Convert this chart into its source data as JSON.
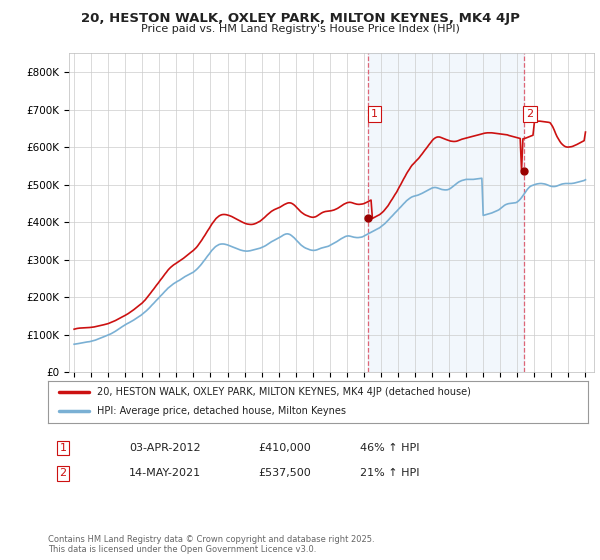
{
  "title": "20, HESTON WALK, OXLEY PARK, MILTON KEYNES, MK4 4JP",
  "subtitle": "Price paid vs. HM Land Registry's House Price Index (HPI)",
  "bg_color": "#ffffff",
  "plot_bg": "#ffffff",
  "line_color_hpi": "#7ab0d4",
  "line_color_price": "#cc1111",
  "vline_color": "#dd6677",
  "shade_color": "#ddeeff",
  "legend_label_price": "20, HESTON WALK, OXLEY PARK, MILTON KEYNES, MK4 4JP (detached house)",
  "legend_label_hpi": "HPI: Average price, detached house, Milton Keynes",
  "annotation1_label": "1",
  "annotation1_date": "03-APR-2012",
  "annotation1_price": "£410,000",
  "annotation1_hpi": "46% ↑ HPI",
  "annotation2_label": "2",
  "annotation2_date": "14-MAY-2021",
  "annotation2_price": "£537,500",
  "annotation2_hpi": "21% ↑ HPI",
  "footer": "Contains HM Land Registry data © Crown copyright and database right 2025.\nThis data is licensed under the Open Government Licence v3.0.",
  "sale1_x": 2012.27,
  "sale1_y": 410000,
  "sale2_x": 2021.37,
  "sale2_y": 537500,
  "ylim": [
    0,
    850000
  ],
  "xlim_left": 1994.7,
  "xlim_right": 2025.5,
  "yticks": [
    0,
    100000,
    200000,
    300000,
    400000,
    500000,
    600000,
    700000,
    800000
  ],
  "ytick_labels": [
    "£0",
    "£100K",
    "£200K",
    "£300K",
    "£400K",
    "£500K",
    "£600K",
    "£700K",
    "£800K"
  ],
  "hpi_x": [
    1995.0,
    1995.08,
    1995.17,
    1995.25,
    1995.33,
    1995.42,
    1995.5,
    1995.58,
    1995.67,
    1995.75,
    1995.83,
    1995.92,
    1996.0,
    1996.08,
    1996.17,
    1996.25,
    1996.33,
    1996.42,
    1996.5,
    1996.58,
    1996.67,
    1996.75,
    1996.83,
    1996.92,
    1997.0,
    1997.08,
    1997.17,
    1997.25,
    1997.33,
    1997.42,
    1997.5,
    1997.58,
    1997.67,
    1997.75,
    1997.83,
    1997.92,
    1998.0,
    1998.08,
    1998.17,
    1998.25,
    1998.33,
    1998.42,
    1998.5,
    1998.58,
    1998.67,
    1998.75,
    1998.83,
    1998.92,
    1999.0,
    1999.08,
    1999.17,
    1999.25,
    1999.33,
    1999.42,
    1999.5,
    1999.58,
    1999.67,
    1999.75,
    1999.83,
    1999.92,
    2000.0,
    2000.08,
    2000.17,
    2000.25,
    2000.33,
    2000.42,
    2000.5,
    2000.58,
    2000.67,
    2000.75,
    2000.83,
    2000.92,
    2001.0,
    2001.08,
    2001.17,
    2001.25,
    2001.33,
    2001.42,
    2001.5,
    2001.58,
    2001.67,
    2001.75,
    2001.83,
    2001.92,
    2002.0,
    2002.08,
    2002.17,
    2002.25,
    2002.33,
    2002.42,
    2002.5,
    2002.58,
    2002.67,
    2002.75,
    2002.83,
    2002.92,
    2003.0,
    2003.08,
    2003.17,
    2003.25,
    2003.33,
    2003.42,
    2003.5,
    2003.58,
    2003.67,
    2003.75,
    2003.83,
    2003.92,
    2004.0,
    2004.08,
    2004.17,
    2004.25,
    2004.33,
    2004.42,
    2004.5,
    2004.58,
    2004.67,
    2004.75,
    2004.83,
    2004.92,
    2005.0,
    2005.08,
    2005.17,
    2005.25,
    2005.33,
    2005.42,
    2005.5,
    2005.58,
    2005.67,
    2005.75,
    2005.83,
    2005.92,
    2006.0,
    2006.08,
    2006.17,
    2006.25,
    2006.33,
    2006.42,
    2006.5,
    2006.58,
    2006.67,
    2006.75,
    2006.83,
    2006.92,
    2007.0,
    2007.08,
    2007.17,
    2007.25,
    2007.33,
    2007.42,
    2007.5,
    2007.58,
    2007.67,
    2007.75,
    2007.83,
    2007.92,
    2008.0,
    2008.08,
    2008.17,
    2008.25,
    2008.33,
    2008.42,
    2008.5,
    2008.58,
    2008.67,
    2008.75,
    2008.83,
    2008.92,
    2009.0,
    2009.08,
    2009.17,
    2009.25,
    2009.33,
    2009.42,
    2009.5,
    2009.58,
    2009.67,
    2009.75,
    2009.83,
    2009.92,
    2010.0,
    2010.08,
    2010.17,
    2010.25,
    2010.33,
    2010.42,
    2010.5,
    2010.58,
    2010.67,
    2010.75,
    2010.83,
    2010.92,
    2011.0,
    2011.08,
    2011.17,
    2011.25,
    2011.33,
    2011.42,
    2011.5,
    2011.58,
    2011.67,
    2011.75,
    2011.83,
    2011.92,
    2012.0,
    2012.08,
    2012.17,
    2012.25,
    2012.33,
    2012.42,
    2012.5,
    2012.58,
    2012.67,
    2012.75,
    2012.83,
    2012.92,
    2013.0,
    2013.08,
    2013.17,
    2013.25,
    2013.33,
    2013.42,
    2013.5,
    2013.58,
    2013.67,
    2013.75,
    2013.83,
    2013.92,
    2014.0,
    2014.08,
    2014.17,
    2014.25,
    2014.33,
    2014.42,
    2014.5,
    2014.58,
    2014.67,
    2014.75,
    2014.83,
    2014.92,
    2015.0,
    2015.08,
    2015.17,
    2015.25,
    2015.33,
    2015.42,
    2015.5,
    2015.58,
    2015.67,
    2015.75,
    2015.83,
    2015.92,
    2016.0,
    2016.08,
    2016.17,
    2016.25,
    2016.33,
    2016.42,
    2016.5,
    2016.58,
    2016.67,
    2016.75,
    2016.83,
    2016.92,
    2017.0,
    2017.08,
    2017.17,
    2017.25,
    2017.33,
    2017.42,
    2017.5,
    2017.58,
    2017.67,
    2017.75,
    2017.83,
    2017.92,
    2018.0,
    2018.08,
    2018.17,
    2018.25,
    2018.33,
    2018.42,
    2018.5,
    2018.58,
    2018.67,
    2018.75,
    2018.83,
    2018.92,
    2019.0,
    2019.08,
    2019.17,
    2019.25,
    2019.33,
    2019.42,
    2019.5,
    2019.58,
    2019.67,
    2019.75,
    2019.83,
    2019.92,
    2020.0,
    2020.08,
    2020.17,
    2020.25,
    2020.33,
    2020.42,
    2020.5,
    2020.58,
    2020.67,
    2020.75,
    2020.83,
    2020.92,
    2021.0,
    2021.08,
    2021.17,
    2021.25,
    2021.33,
    2021.42,
    2021.5,
    2021.58,
    2021.67,
    2021.75,
    2021.83,
    2021.92,
    2022.0,
    2022.08,
    2022.17,
    2022.25,
    2022.33,
    2022.42,
    2022.5,
    2022.58,
    2022.67,
    2022.75,
    2022.83,
    2022.92,
    2023.0,
    2023.08,
    2023.17,
    2023.25,
    2023.33,
    2023.42,
    2023.5,
    2023.58,
    2023.67,
    2023.75,
    2023.83,
    2023.92,
    2024.0,
    2024.08,
    2024.17,
    2024.25,
    2024.33,
    2024.42,
    2024.5,
    2024.58,
    2024.67,
    2024.75,
    2024.83,
    2024.92,
    2025.0
  ],
  "hpi_y": [
    75000,
    75500,
    76000,
    76800,
    77500,
    78200,
    79000,
    79800,
    80500,
    81000,
    81500,
    82000,
    83000,
    84000,
    85000,
    86000,
    87500,
    89000,
    90500,
    92000,
    93500,
    95000,
    96500,
    98000,
    99500,
    101000,
    103000,
    105000,
    107000,
    109500,
    112000,
    114500,
    117000,
    119500,
    122000,
    124500,
    127000,
    129000,
    131000,
    133000,
    135000,
    137000,
    139500,
    142000,
    144500,
    147000,
    149500,
    152000,
    155000,
    158000,
    161000,
    164500,
    168000,
    172000,
    176000,
    180000,
    184000,
    188000,
    192000,
    196000,
    200000,
    204000,
    208000,
    212000,
    216000,
    220000,
    224000,
    227000,
    230000,
    233000,
    236000,
    238500,
    241000,
    243000,
    245000,
    247500,
    250000,
    252500,
    255000,
    257000,
    259000,
    261000,
    263000,
    265000,
    267000,
    270000,
    273500,
    277000,
    281000,
    285500,
    290000,
    295000,
    300000,
    305000,
    310000,
    315000,
    320000,
    325000,
    329000,
    333000,
    336000,
    338500,
    340500,
    341500,
    342000,
    342000,
    341500,
    340500,
    339500,
    338000,
    336500,
    335000,
    333500,
    332000,
    330500,
    329000,
    327500,
    326000,
    325000,
    324000,
    323500,
    323000,
    323000,
    323500,
    324000,
    325000,
    326000,
    327000,
    328000,
    329000,
    330000,
    331000,
    332500,
    334000,
    336000,
    338000,
    340500,
    343000,
    345500,
    348000,
    350000,
    352000,
    354000,
    356000,
    358000,
    360000,
    362500,
    365000,
    367000,
    368500,
    369000,
    368500,
    367000,
    364500,
    361500,
    358000,
    354000,
    350000,
    346000,
    342000,
    338500,
    335500,
    333000,
    331000,
    329500,
    328000,
    326500,
    325500,
    325000,
    325000,
    325500,
    326500,
    328000,
    329500,
    331000,
    332000,
    333000,
    334000,
    335000,
    336000,
    338000,
    340000,
    342000,
    344000,
    346000,
    348500,
    351000,
    353500,
    356000,
    358000,
    360000,
    362000,
    363000,
    363500,
    363000,
    362000,
    361000,
    360000,
    359500,
    359000,
    359000,
    359500,
    360000,
    361000,
    363000,
    365000,
    367000,
    369000,
    371000,
    373000,
    375000,
    377000,
    379000,
    381000,
    383000,
    385000,
    388000,
    391000,
    394000,
    397000,
    401000,
    405000,
    409000,
    413000,
    417000,
    421000,
    425000,
    429000,
    433000,
    437000,
    441000,
    445000,
    449000,
    453000,
    457000,
    460000,
    463000,
    465500,
    467500,
    469000,
    470000,
    471000,
    472000,
    473500,
    475000,
    477000,
    479000,
    481000,
    483000,
    485000,
    487000,
    489000,
    491000,
    492000,
    492500,
    492000,
    491000,
    489500,
    488000,
    487000,
    486500,
    486000,
    486000,
    486500,
    488000,
    490000,
    493000,
    496000,
    499000,
    502000,
    505000,
    507500,
    509500,
    511000,
    512000,
    513000,
    514000,
    514000,
    514000,
    514000,
    514000,
    514000,
    514500,
    515000,
    515500,
    516000,
    516500,
    517000,
    418000,
    419000,
    420000,
    421000,
    422000,
    423000,
    424500,
    426000,
    427500,
    429000,
    431000,
    433000,
    436000,
    439000,
    442000,
    445000,
    447000,
    448500,
    449500,
    450000,
    450500,
    451000,
    451500,
    452000,
    454000,
    457000,
    461000,
    465500,
    470500,
    476000,
    481500,
    487000,
    491500,
    495000,
    497000,
    498500,
    500000,
    501000,
    502000,
    502500,
    503000,
    503000,
    502500,
    502000,
    501000,
    499500,
    498000,
    496500,
    495500,
    495000,
    495000,
    495500,
    496500,
    498000,
    499500,
    501000,
    502000,
    502500,
    503000,
    503000,
    503000,
    503000,
    503000,
    503500,
    504000,
    505000,
    506000,
    507000,
    508000,
    509000,
    510000,
    511000,
    513000
  ],
  "price_x": [
    1995.0,
    1995.08,
    1995.17,
    1995.25,
    1995.33,
    1995.42,
    1995.5,
    1995.58,
    1995.67,
    1995.75,
    1995.83,
    1995.92,
    1996.0,
    1996.08,
    1996.17,
    1996.25,
    1996.33,
    1996.42,
    1996.5,
    1996.58,
    1996.67,
    1996.75,
    1996.83,
    1996.92,
    1997.0,
    1997.08,
    1997.17,
    1997.25,
    1997.33,
    1997.42,
    1997.5,
    1997.58,
    1997.67,
    1997.75,
    1997.83,
    1997.92,
    1998.0,
    1998.08,
    1998.17,
    1998.25,
    1998.33,
    1998.42,
    1998.5,
    1998.58,
    1998.67,
    1998.75,
    1998.83,
    1998.92,
    1999.0,
    1999.08,
    1999.17,
    1999.25,
    1999.33,
    1999.42,
    1999.5,
    1999.58,
    1999.67,
    1999.75,
    1999.83,
    1999.92,
    2000.0,
    2000.08,
    2000.17,
    2000.25,
    2000.33,
    2000.42,
    2000.5,
    2000.58,
    2000.67,
    2000.75,
    2000.83,
    2000.92,
    2001.0,
    2001.08,
    2001.17,
    2001.25,
    2001.33,
    2001.42,
    2001.5,
    2001.58,
    2001.67,
    2001.75,
    2001.83,
    2001.92,
    2002.0,
    2002.08,
    2002.17,
    2002.25,
    2002.33,
    2002.42,
    2002.5,
    2002.58,
    2002.67,
    2002.75,
    2002.83,
    2002.92,
    2003.0,
    2003.08,
    2003.17,
    2003.25,
    2003.33,
    2003.42,
    2003.5,
    2003.58,
    2003.67,
    2003.75,
    2003.83,
    2003.92,
    2004.0,
    2004.08,
    2004.17,
    2004.25,
    2004.33,
    2004.42,
    2004.5,
    2004.58,
    2004.67,
    2004.75,
    2004.83,
    2004.92,
    2005.0,
    2005.08,
    2005.17,
    2005.25,
    2005.33,
    2005.42,
    2005.5,
    2005.58,
    2005.67,
    2005.75,
    2005.83,
    2005.92,
    2006.0,
    2006.08,
    2006.17,
    2006.25,
    2006.33,
    2006.42,
    2006.5,
    2006.58,
    2006.67,
    2006.75,
    2006.83,
    2006.92,
    2007.0,
    2007.08,
    2007.17,
    2007.25,
    2007.33,
    2007.42,
    2007.5,
    2007.58,
    2007.67,
    2007.75,
    2007.83,
    2007.92,
    2008.0,
    2008.08,
    2008.17,
    2008.25,
    2008.33,
    2008.42,
    2008.5,
    2008.58,
    2008.67,
    2008.75,
    2008.83,
    2008.92,
    2009.0,
    2009.08,
    2009.17,
    2009.25,
    2009.33,
    2009.42,
    2009.5,
    2009.58,
    2009.67,
    2009.75,
    2009.83,
    2009.92,
    2010.0,
    2010.08,
    2010.17,
    2010.25,
    2010.33,
    2010.42,
    2010.5,
    2010.58,
    2010.67,
    2010.75,
    2010.83,
    2010.92,
    2011.0,
    2011.08,
    2011.17,
    2011.25,
    2011.33,
    2011.42,
    2011.5,
    2011.58,
    2011.67,
    2011.75,
    2011.83,
    2011.92,
    2012.0,
    2012.08,
    2012.17,
    2012.25,
    2012.33,
    2012.42,
    2012.5,
    2012.58,
    2012.67,
    2012.75,
    2012.83,
    2012.92,
    2013.0,
    2013.08,
    2013.17,
    2013.25,
    2013.33,
    2013.42,
    2013.5,
    2013.58,
    2013.67,
    2013.75,
    2013.83,
    2013.92,
    2014.0,
    2014.08,
    2014.17,
    2014.25,
    2014.33,
    2014.42,
    2014.5,
    2014.58,
    2014.67,
    2014.75,
    2014.83,
    2014.92,
    2015.0,
    2015.08,
    2015.17,
    2015.25,
    2015.33,
    2015.42,
    2015.5,
    2015.58,
    2015.67,
    2015.75,
    2015.83,
    2015.92,
    2016.0,
    2016.08,
    2016.17,
    2016.25,
    2016.33,
    2016.42,
    2016.5,
    2016.58,
    2016.67,
    2016.75,
    2016.83,
    2016.92,
    2017.0,
    2017.08,
    2017.17,
    2017.25,
    2017.33,
    2017.42,
    2017.5,
    2017.58,
    2017.67,
    2017.75,
    2017.83,
    2017.92,
    2018.0,
    2018.08,
    2018.17,
    2018.25,
    2018.33,
    2018.42,
    2018.5,
    2018.58,
    2018.67,
    2018.75,
    2018.83,
    2018.92,
    2019.0,
    2019.08,
    2019.17,
    2019.25,
    2019.33,
    2019.42,
    2019.5,
    2019.58,
    2019.67,
    2019.75,
    2019.83,
    2019.92,
    2020.0,
    2020.08,
    2020.17,
    2020.25,
    2020.33,
    2020.42,
    2020.5,
    2020.58,
    2020.67,
    2020.75,
    2020.83,
    2020.92,
    2021.0,
    2021.08,
    2021.17,
    2021.25,
    2021.33,
    2021.42,
    2021.5,
    2021.58,
    2021.67,
    2021.75,
    2021.83,
    2021.92,
    2022.0,
    2022.08,
    2022.17,
    2022.25,
    2022.33,
    2022.42,
    2022.5,
    2022.58,
    2022.67,
    2022.75,
    2022.83,
    2022.92,
    2023.0,
    2023.08,
    2023.17,
    2023.25,
    2023.33,
    2023.42,
    2023.5,
    2023.58,
    2023.67,
    2023.75,
    2023.83,
    2023.92,
    2024.0,
    2024.08,
    2024.17,
    2024.25,
    2024.33,
    2024.42,
    2024.5,
    2024.58,
    2024.67,
    2024.75,
    2024.83,
    2024.92,
    2025.0
  ],
  "price_y": [
    115000,
    116000,
    117000,
    117500,
    118000,
    118200,
    118500,
    118800,
    119000,
    119200,
    119400,
    119600,
    120000,
    120500,
    121000,
    121800,
    122500,
    123200,
    124000,
    125000,
    126000,
    127000,
    128000,
    129000,
    130000,
    131500,
    133000,
    134500,
    136000,
    138000,
    140000,
    142000,
    144000,
    146000,
    148000,
    150000,
    152000,
    154000,
    156500,
    159000,
    161500,
    164000,
    167000,
    170000,
    173000,
    176000,
    179000,
    182000,
    185000,
    189000,
    193000,
    197500,
    202000,
    207000,
    212000,
    217000,
    222000,
    227000,
    232000,
    237000,
    242000,
    247000,
    252000,
    257000,
    262000,
    267000,
    272000,
    276000,
    280000,
    283000,
    286000,
    288500,
    291000,
    293500,
    296000,
    298500,
    301000,
    304000,
    307000,
    310000,
    313000,
    316000,
    319000,
    322000,
    325000,
    328500,
    332500,
    337000,
    342000,
    347500,
    353000,
    359000,
    365000,
    371000,
    377000,
    383000,
    389000,
    395000,
    400500,
    405500,
    410000,
    413500,
    416500,
    418500,
    420000,
    420500,
    420500,
    420000,
    419000,
    418000,
    416500,
    415000,
    413000,
    411000,
    409000,
    407000,
    405000,
    403000,
    401000,
    399000,
    397500,
    396000,
    395000,
    394500,
    394000,
    394000,
    394500,
    395500,
    397000,
    399000,
    401000,
    403000,
    406000,
    409000,
    412500,
    416000,
    419500,
    423000,
    426000,
    429000,
    431500,
    433500,
    435000,
    436500,
    438000,
    440000,
    442500,
    445000,
    447000,
    449000,
    450500,
    451500,
    451500,
    450500,
    448500,
    445500,
    442000,
    438000,
    434000,
    430000,
    426500,
    423500,
    421000,
    419000,
    417500,
    416000,
    414500,
    413500,
    413000,
    413500,
    414500,
    416500,
    419000,
    421500,
    424000,
    426000,
    427500,
    428500,
    429000,
    429500,
    430000,
    430500,
    431500,
    432500,
    434000,
    436000,
    438000,
    440500,
    443000,
    445500,
    448000,
    450000,
    451500,
    452500,
    453000,
    452500,
    451500,
    450000,
    449000,
    448000,
    447500,
    447500,
    448000,
    448500,
    449500,
    451000,
    453000,
    455000,
    457000,
    459000,
    410000,
    412000,
    414000,
    416000,
    418000,
    420000,
    423000,
    426000,
    430000,
    434500,
    439000,
    444000,
    450000,
    456000,
    462000,
    468000,
    474000,
    480000,
    487000,
    494000,
    501000,
    508000,
    515000,
    522000,
    529000,
    535000,
    541000,
    547000,
    552000,
    556000,
    560000,
    564000,
    568000,
    572000,
    577000,
    582000,
    587000,
    592000,
    597000,
    602000,
    607000,
    612000,
    617000,
    621000,
    624000,
    626000,
    627000,
    627000,
    626000,
    624500,
    623000,
    621500,
    620000,
    618500,
    617000,
    616000,
    615500,
    615000,
    615000,
    615500,
    616500,
    618000,
    619500,
    621000,
    622000,
    623000,
    624000,
    625000,
    626000,
    627000,
    628000,
    629000,
    630000,
    631000,
    632000,
    633000,
    634000,
    635000,
    636000,
    637000,
    637500,
    638000,
    638000,
    638000,
    638000,
    637500,
    637000,
    636500,
    636000,
    635500,
    635000,
    634500,
    634000,
    633500,
    633000,
    632500,
    631000,
    630000,
    629000,
    628000,
    627000,
    626000,
    625000,
    624000,
    623000,
    537500,
    622000,
    623000,
    624000,
    625500,
    627000,
    628500,
    630000,
    631500,
    665000,
    667000,
    668000,
    669000,
    669000,
    668500,
    668000,
    667500,
    667000,
    666500,
    666000,
    665000,
    660000,
    654000,
    645000,
    636000,
    628000,
    621000,
    615000,
    610000,
    606000,
    603000,
    601000,
    600000,
    600000,
    600500,
    601000,
    602000,
    603500,
    605000,
    607000,
    609000,
    611000,
    613000,
    615000,
    617000,
    640000
  ]
}
